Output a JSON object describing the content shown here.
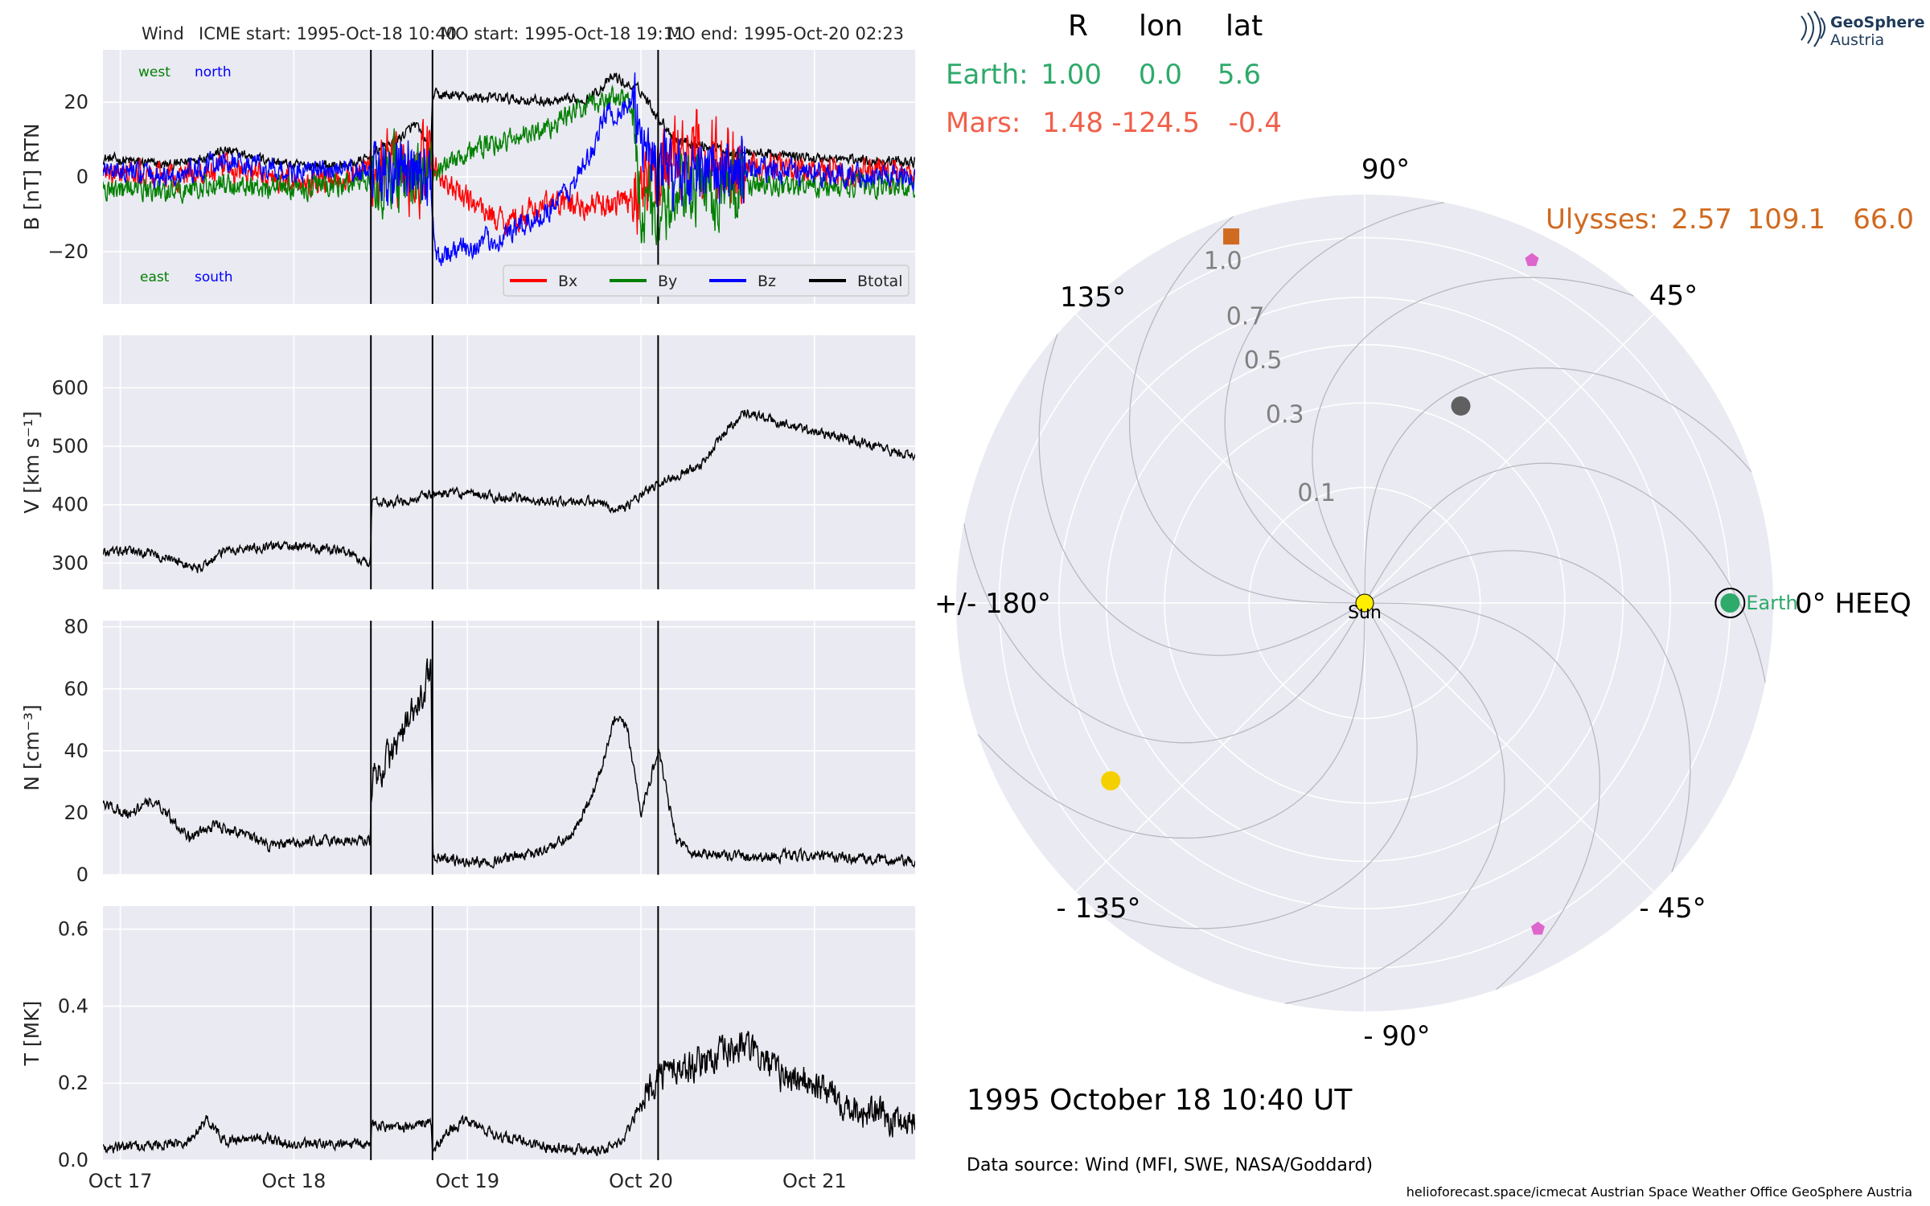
{
  "header": {
    "spacecraft": "Wind",
    "icme_start": "ICME start: 1995-Oct-18 10:40",
    "mo_start": "MO start: 1995-Oct-18 19:11",
    "mo_end": "MO end: 1995-Oct-20 02:23"
  },
  "logo": {
    "line1": "GeoSphere",
    "line2": "Austria"
  },
  "positions": {
    "col_r": "R",
    "col_lon": "lon",
    "col_lat": "lat",
    "rows": [
      {
        "name": "Earth:",
        "r": "1.00",
        "lon": "0.0",
        "lat": "5.6",
        "color": "#2eaa6a"
      },
      {
        "name": "Mars:",
        "r": "1.48",
        "lon": "-124.5",
        "lat": "-0.4",
        "color": "#f0604a"
      },
      {
        "name": "Ulysses:",
        "r": "2.57",
        "lon": "109.1",
        "lat": "66.0",
        "color": "#d06a20"
      }
    ]
  },
  "timestamp": "1995 October 18  10:40 UT",
  "data_source": "Data source: Wind (MFI, SWE, NASA/Goddard)",
  "footer": "helioforecast.space/icmecat   Austrian Space Weather Office   GeoSphere Austria",
  "colors": {
    "bx": "#ff0000",
    "by": "#008000",
    "bz": "#0000ff",
    "bt": "#000000",
    "axes_bg": "#eaeaf2",
    "sun": "#ffee00",
    "earth": "#2eaa6a",
    "ulysses": "#d06a20",
    "mercury": "#606060",
    "venus": "#f5d000",
    "stereo_like": "#dd66cc"
  },
  "chart_data": [
    {
      "type": "line",
      "ylabel": "B [nT] RTN",
      "ylim": [
        -34,
        34
      ],
      "yticks": [
        -20,
        0,
        20
      ],
      "ytick_labels": [
        "−20",
        "0",
        "20"
      ],
      "xlim": [
        -0.1,
        4.58
      ],
      "xticks": [
        "Oct 17",
        "Oct 18",
        "Oct 19",
        "Oct 20",
        "Oct 21"
      ],
      "xtick_values": [
        0,
        1,
        2,
        3,
        4
      ],
      "annotations": {
        "west": "west",
        "north": "north",
        "east": "east",
        "south": "south"
      },
      "event_lines_days": [
        1.444,
        1.799,
        3.099
      ],
      "legend": {
        "placement": "lower-right",
        "entries": [
          "Bx",
          "By",
          "Bz",
          "Btotal"
        ]
      },
      "series": [
        {
          "name": "Btotal",
          "x": [
            -0.1,
            0.3,
            0.6,
            1.0,
            1.3,
            1.44,
            1.5,
            1.6,
            1.7,
            1.79,
            1.8,
            2.2,
            2.5,
            2.7,
            2.85,
            2.9,
            3.0,
            3.1,
            3.2,
            3.5,
            4.0,
            4.58
          ],
          "y": [
            5,
            3,
            7,
            3,
            3,
            5,
            8,
            10,
            14,
            7,
            22,
            21,
            20,
            21,
            27,
            25,
            23,
            16,
            10,
            7,
            5,
            4
          ]
        },
        {
          "name": "Bx",
          "x": [
            -0.1,
            0.3,
            0.6,
            1.0,
            1.3,
            1.44,
            1.6,
            1.79,
            1.9,
            2.2,
            2.5,
            2.8,
            2.95,
            3.1,
            3.3,
            3.7,
            4.0,
            4.58
          ],
          "y": [
            1,
            0,
            2,
            -1,
            0,
            3,
            -2,
            4,
            -3,
            -12,
            -7,
            -8,
            -5,
            2,
            5,
            3,
            2,
            1
          ]
        },
        {
          "name": "By",
          "x": [
            -0.1,
            0.3,
            0.6,
            1.0,
            1.3,
            1.44,
            1.6,
            1.79,
            1.9,
            2.1,
            2.4,
            2.6,
            2.8,
            2.95,
            3.0,
            3.1,
            3.3,
            3.7,
            4.0,
            4.58
          ],
          "y": [
            -3,
            -4,
            -2,
            -3,
            -2,
            0,
            2,
            -2,
            5,
            8,
            12,
            17,
            21,
            20,
            -6,
            -12,
            -3,
            -2,
            -3,
            -2
          ]
        },
        {
          "name": "Bz",
          "x": [
            -0.1,
            0.3,
            0.6,
            1.0,
            1.3,
            1.44,
            1.6,
            1.79,
            1.82,
            2.0,
            2.2,
            2.4,
            2.6,
            2.7,
            2.8,
            2.95,
            3.0,
            3.1,
            3.3,
            3.7,
            4.0,
            4.58
          ],
          "y": [
            2,
            0,
            4,
            1,
            2,
            1,
            3,
            -2,
            -21,
            -19,
            -16,
            -11,
            -3,
            5,
            17,
            19,
            12,
            2,
            1,
            2,
            1,
            0
          ]
        }
      ]
    },
    {
      "type": "line",
      "ylabel": "V [km s⁻¹]",
      "ylim": [
        255,
        690
      ],
      "yticks": [
        300,
        400,
        500,
        600
      ],
      "xlim": [
        -0.1,
        4.58
      ],
      "event_lines_days": [
        1.444,
        1.799,
        3.099
      ],
      "series": [
        {
          "name": "V",
          "x": [
            -0.1,
            0.1,
            0.25,
            0.45,
            0.6,
            0.8,
            1.0,
            1.3,
            1.44,
            1.45,
            1.55,
            1.7,
            1.8,
            1.9,
            2.1,
            2.3,
            2.5,
            2.7,
            2.8,
            2.9,
            3.0,
            3.1,
            3.2,
            3.35,
            3.5,
            3.6,
            3.8,
            4.0,
            4.3,
            4.58
          ],
          "y": [
            318,
            320,
            310,
            290,
            320,
            328,
            330,
            320,
            298,
            410,
            402,
            410,
            418,
            420,
            415,
            410,
            405,
            405,
            398,
            395,
            415,
            435,
            450,
            470,
            530,
            560,
            540,
            525,
            505,
            480
          ]
        }
      ]
    },
    {
      "type": "line",
      "ylabel": "N [cm⁻³]",
      "ylim": [
        0,
        82
      ],
      "yticks": [
        0,
        20,
        40,
        60,
        80
      ],
      "xlim": [
        -0.1,
        4.58
      ],
      "event_lines_days": [
        1.444,
        1.799,
        3.099
      ],
      "series": [
        {
          "name": "N",
          "x": [
            -0.1,
            0.05,
            0.2,
            0.4,
            0.55,
            0.75,
            0.85,
            1.0,
            1.2,
            1.44,
            1.45,
            1.55,
            1.65,
            1.75,
            1.79,
            1.8,
            2.0,
            2.2,
            2.4,
            2.6,
            2.75,
            2.85,
            2.92,
            3.0,
            3.1,
            3.2,
            3.3,
            3.6,
            4.0,
            4.58
          ],
          "y": [
            23,
            20,
            24,
            12,
            16,
            13,
            9,
            10,
            11,
            11,
            30,
            38,
            48,
            58,
            70,
            6,
            4,
            5,
            7,
            12,
            30,
            50,
            48,
            20,
            40,
            12,
            7,
            6,
            6,
            4
          ]
        }
      ]
    },
    {
      "type": "line",
      "ylabel": "T [MK]",
      "ylim": [
        0,
        0.66
      ],
      "yticks": [
        0.0,
        0.2,
        0.4,
        0.6
      ],
      "xlim": [
        -0.1,
        4.58
      ],
      "event_lines_days": [
        1.444,
        1.799,
        3.099
      ],
      "series": [
        {
          "name": "T",
          "x": [
            -0.1,
            0.2,
            0.4,
            0.5,
            0.6,
            0.8,
            1.0,
            1.2,
            1.44,
            1.45,
            1.6,
            1.79,
            1.8,
            1.9,
            2.0,
            2.2,
            2.4,
            2.6,
            2.8,
            2.9,
            3.0,
            3.1,
            3.3,
            3.5,
            3.6,
            3.8,
            4.0,
            4.3,
            4.58
          ],
          "y": [
            0.03,
            0.04,
            0.05,
            0.11,
            0.05,
            0.06,
            0.04,
            0.04,
            0.04,
            0.1,
            0.08,
            0.1,
            0.02,
            0.08,
            0.1,
            0.06,
            0.04,
            0.03,
            0.03,
            0.05,
            0.15,
            0.22,
            0.25,
            0.28,
            0.3,
            0.22,
            0.2,
            0.12,
            0.1
          ]
        }
      ]
    },
    {
      "type": "scatter",
      "title": "",
      "radial_ticks": [
        "0.1",
        "0.3",
        "0.5",
        "0.7",
        "1.0"
      ],
      "radial_values": [
        0.1,
        0.3,
        0.5,
        0.7,
        1.0
      ],
      "rlim": [
        0,
        1.25
      ],
      "angle_labels": [
        {
          "text": "0° HEEQ",
          "deg": 0
        },
        {
          "text": "45°",
          "deg": 45
        },
        {
          "text": "90°",
          "deg": 90
        },
        {
          "text": "135°",
          "deg": 135
        },
        {
          "text": "+/- 180°",
          "deg": 180
        },
        {
          "text": "- 135°",
          "deg": -135
        },
        {
          "text": "- 90°",
          "deg": -90
        },
        {
          "text": "- 45°",
          "deg": -45
        }
      ],
      "bodies": [
        {
          "label": "Sun",
          "r": 0.0,
          "lon": 0,
          "shape": "circle",
          "color": "#ffee00"
        },
        {
          "label": "Earth",
          "r": 1.0,
          "lon": 0.0,
          "shape": "circle",
          "color": "#2eaa6a"
        },
        {
          "label": "",
          "r": 0.36,
          "lon": 64,
          "shape": "circle",
          "color": "#606060"
        },
        {
          "label": "",
          "r": 0.72,
          "lon": -145,
          "shape": "circle",
          "color": "#f5d000"
        },
        {
          "label": "",
          "r": 1.14,
          "lon": 110,
          "shape": "square",
          "color": "#d06a20"
        },
        {
          "label": "",
          "r": 1.09,
          "lon": 64,
          "shape": "pentagon",
          "color": "#dd66cc"
        },
        {
          "label": "",
          "r": 1.02,
          "lon": -62,
          "shape": "pentagon",
          "color": "#dd66cc"
        }
      ]
    }
  ]
}
